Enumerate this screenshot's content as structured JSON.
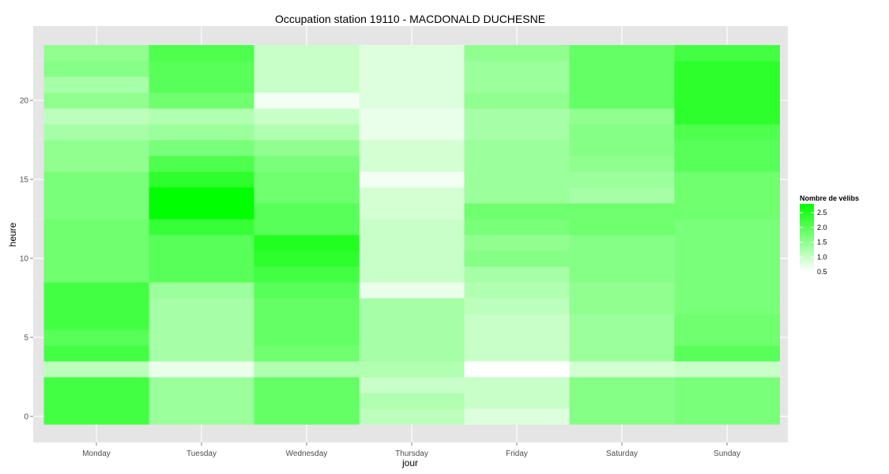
{
  "chart_data": {
    "type": "heatmap",
    "title": "Occupation station 19110 - MACDONALD DUCHESNE",
    "xlabel": "jour",
    "ylabel": "heure",
    "x_categories": [
      "Monday",
      "Tuesday",
      "Wednesday",
      "Thursday",
      "Friday",
      "Saturday",
      "Sunday"
    ],
    "y_range": [
      0,
      23
    ],
    "y_ticks": [
      0,
      5,
      10,
      15,
      20
    ],
    "grid": true,
    "legend": {
      "title": "Nombre de vélibs",
      "placement": "right",
      "min": 0.5,
      "max": 2.8,
      "ticks": [
        0.5,
        1.0,
        1.5,
        2.0,
        2.5
      ],
      "tick_labels": [
        "0.5",
        "1.0",
        "1.5",
        "2.0",
        "2.5"
      ],
      "low_color": "#ffffff",
      "high_color": "#00ff00"
    },
    "hours": [
      0,
      1,
      2,
      3,
      4,
      5,
      6,
      7,
      8,
      9,
      10,
      11,
      12,
      13,
      14,
      15,
      16,
      17,
      18,
      19,
      20,
      21,
      22,
      23
    ],
    "series": [
      {
        "values": [
          2.2,
          2.2,
          2.2,
          1.1,
          2.2,
          2.0,
          2.2,
          2.2,
          2.2,
          1.8,
          1.8,
          1.8,
          1.8,
          1.7,
          1.7,
          1.7,
          1.5,
          1.5,
          1.3,
          1.1,
          1.5,
          1.3,
          1.6,
          1.5
        ]
      },
      {
        "values": [
          1.4,
          1.4,
          1.4,
          0.7,
          1.3,
          1.3,
          1.3,
          1.3,
          1.4,
          2.0,
          2.0,
          2.0,
          2.3,
          2.8,
          2.8,
          2.4,
          2.1,
          1.7,
          1.4,
          1.2,
          1.8,
          2.0,
          2.0,
          2.1
        ]
      },
      {
        "values": [
          1.9,
          1.9,
          1.9,
          1.2,
          1.8,
          1.9,
          1.9,
          1.9,
          2.0,
          2.2,
          2.4,
          2.5,
          2.0,
          2.0,
          1.8,
          1.8,
          1.7,
          1.5,
          1.2,
          1.0,
          0.6,
          1.0,
          1.0,
          1.0
        ]
      },
      {
        "values": [
          1.1,
          1.2,
          1.0,
          1.2,
          1.3,
          1.3,
          1.3,
          1.3,
          0.7,
          1.0,
          1.0,
          1.0,
          1.0,
          0.9,
          0.9,
          0.6,
          0.9,
          0.9,
          0.7,
          0.7,
          0.8,
          0.8,
          0.8,
          0.8
        ]
      },
      {
        "values": [
          0.8,
          1.0,
          1.0,
          0.5,
          1.0,
          1.0,
          1.0,
          1.1,
          1.2,
          1.3,
          1.6,
          1.5,
          1.7,
          1.8,
          1.4,
          1.4,
          1.4,
          1.4,
          1.3,
          1.3,
          1.5,
          1.4,
          1.4,
          1.5
        ]
      },
      {
        "values": [
          1.6,
          1.6,
          1.6,
          0.9,
          1.4,
          1.4,
          1.4,
          1.5,
          1.5,
          1.6,
          1.6,
          1.6,
          1.8,
          1.8,
          1.3,
          1.4,
          1.5,
          1.6,
          1.6,
          1.5,
          1.9,
          1.9,
          1.9,
          1.9
        ]
      },
      {
        "values": [
          1.7,
          1.7,
          1.7,
          1.0,
          2.0,
          1.8,
          1.8,
          1.7,
          1.7,
          1.7,
          1.7,
          1.7,
          1.7,
          1.8,
          1.8,
          1.8,
          2.0,
          2.0,
          2.1,
          2.4,
          2.4,
          2.4,
          2.4,
          2.2
        ]
      }
    ]
  }
}
